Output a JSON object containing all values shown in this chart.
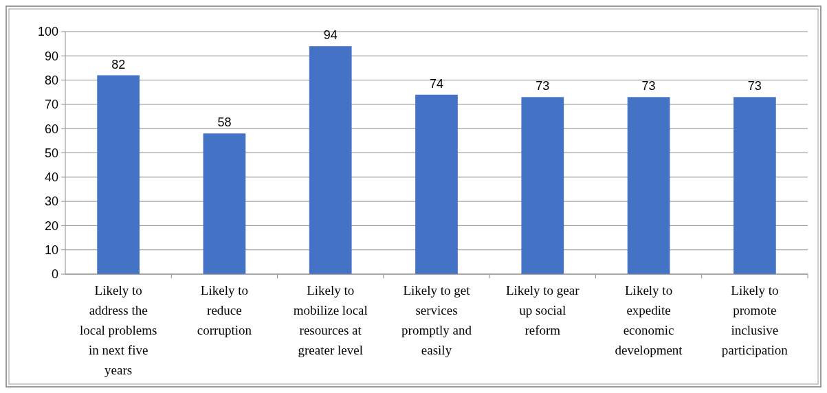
{
  "chart_data": {
    "type": "bar",
    "categories": [
      "Likely to address the local problems in next five years",
      "Likely to reduce corruption",
      "Likely to mobilize local resources at greater level",
      "Likely to get services promptly and easily",
      "Likely to gear up social reform",
      "Likely to expedite economic development",
      "Likely to promote inclusive participation"
    ],
    "values": [
      82,
      58,
      94,
      74,
      73,
      73,
      73
    ],
    "color": "#4472c4",
    "ylim": [
      0,
      100
    ],
    "yticks": [
      0,
      10,
      20,
      30,
      40,
      50,
      60,
      70,
      80,
      90,
      100
    ],
    "grid": "y",
    "data_labels": true
  }
}
